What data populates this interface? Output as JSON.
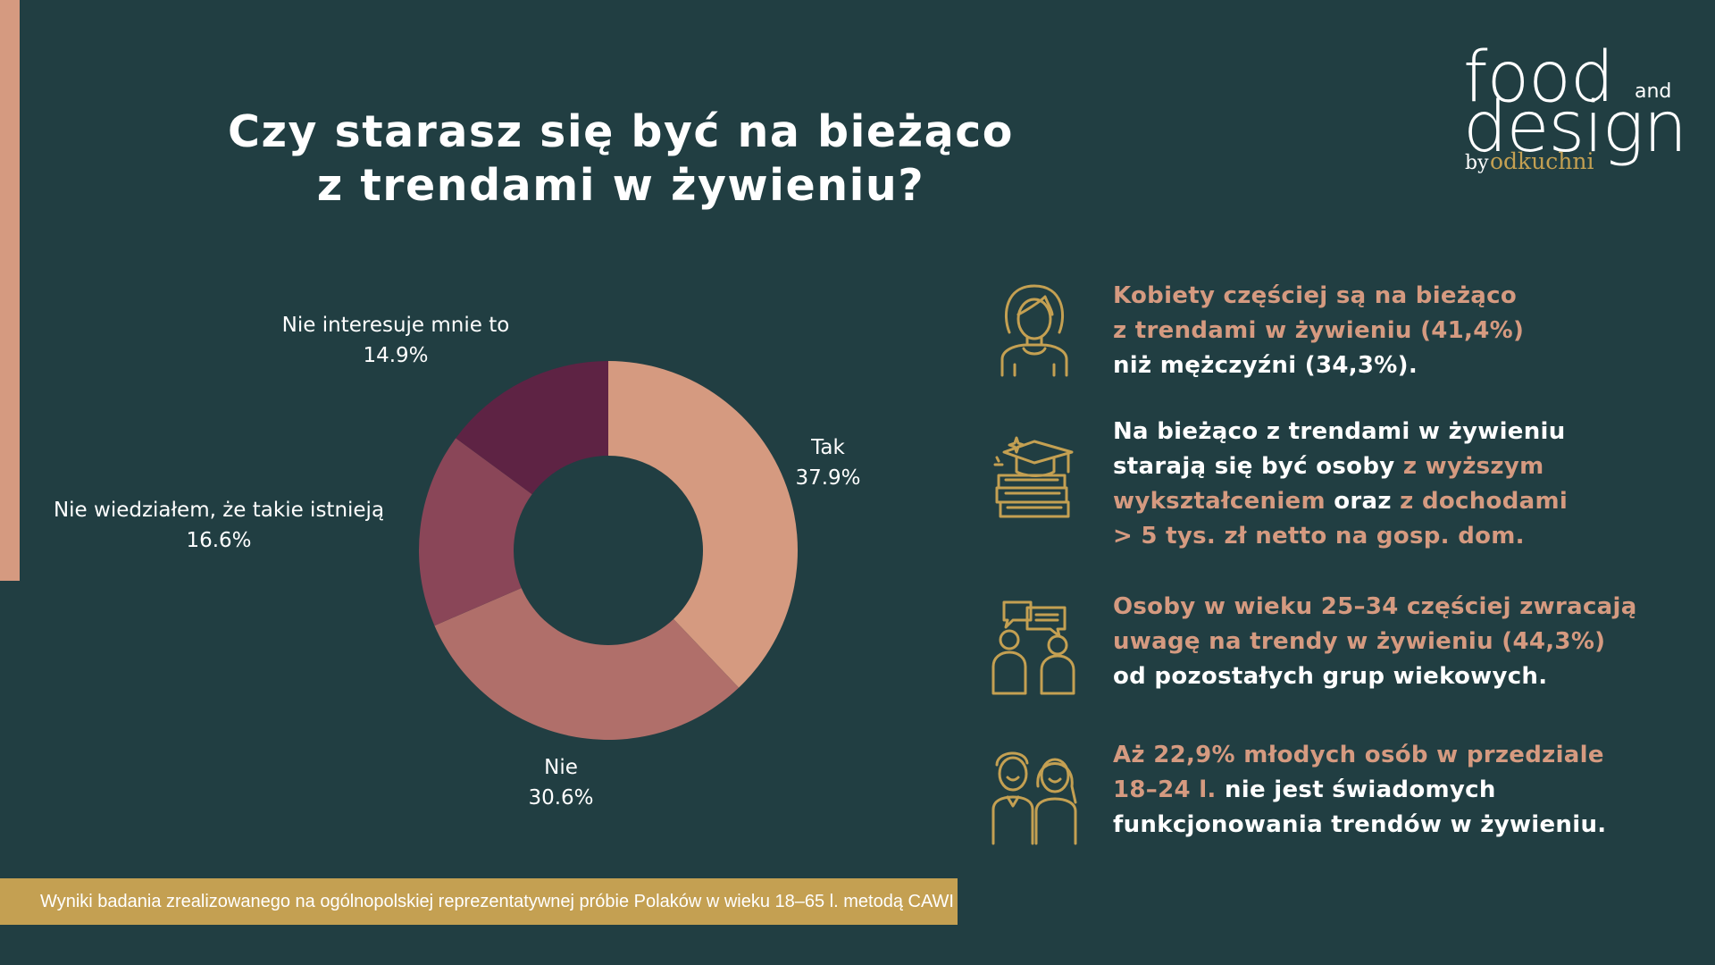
{
  "title": {
    "line1": "Czy starasz się być na bieżąco",
    "line2": "z trendami w żywieniu?"
  },
  "logo": {
    "word1": "food",
    "word2": "design",
    "and": "and",
    "by": "by",
    "brand": "odkuchni"
  },
  "colors": {
    "background": "#213e42",
    "accent": "#d59a80",
    "gold": "#c4a052"
  },
  "chart_data": {
    "type": "pie",
    "variant": "donut",
    "title": "Czy starasz się być na bieżąco z trendami w żywieniu?",
    "slices": [
      {
        "label": "Tak",
        "value": 37.9,
        "display": "37.9%",
        "color": "#d59a80"
      },
      {
        "label": "Nie",
        "value": 30.6,
        "display": "30.6%",
        "color": "#b06f6a"
      },
      {
        "label": "Nie wiedziałem, że takie istnieją",
        "value": 16.6,
        "display": "16.6%",
        "color": "#8a4658"
      },
      {
        "label": "Nie interesuje mnie to",
        "value": 14.9,
        "display": "14.9%",
        "color": "#5e2344"
      }
    ],
    "legend": "none",
    "labels": "outside"
  },
  "facts": [
    {
      "icon": "woman-icon",
      "lines": [
        [
          {
            "text": "Kobiety częściej są na bieżąco",
            "style": "pink"
          }
        ],
        [
          {
            "text": "z trendami w żywieniu (41,4%)",
            "style": "pink"
          }
        ],
        [
          {
            "text": "niż mężczyźni (34,3%).",
            "style": "white"
          }
        ]
      ]
    },
    {
      "icon": "education-books-icon",
      "lines": [
        [
          {
            "text": "Na bieżąco z trendami w żywieniu",
            "style": "white"
          }
        ],
        [
          {
            "text": "starają się być osoby ",
            "style": "white"
          },
          {
            "text": "z wyższym",
            "style": "pink"
          }
        ],
        [
          {
            "text": "wykształceniem",
            "style": "pink"
          },
          {
            "text": " oraz ",
            "style": "white"
          },
          {
            "text": "z dochodami",
            "style": "pink"
          }
        ],
        [
          {
            "text": "> 5 tys. zł netto na gosp. dom.",
            "style": "pink"
          }
        ]
      ]
    },
    {
      "icon": "people-chat-icon",
      "lines": [
        [
          {
            "text": "Osoby w wieku 25–34 częściej zwracają",
            "style": "pink"
          }
        ],
        [
          {
            "text": "uwagę na trendy w żywieniu (44,3%)",
            "style": "pink"
          }
        ],
        [
          {
            "text": "od pozostałych grup wiekowych.",
            "style": "white"
          }
        ]
      ]
    },
    {
      "icon": "young-couple-icon",
      "lines": [
        [
          {
            "text": "Aż 22,9% młodych osób w przedziale",
            "style": "pink"
          }
        ],
        [
          {
            "text": "18–24 l.",
            "style": "pink"
          },
          {
            "text": " nie jest świadomych",
            "style": "white"
          }
        ],
        [
          {
            "text": "funkcjonowania trendów w żywieniu.",
            "style": "white"
          }
        ]
      ]
    }
  ],
  "footer": {
    "text": "Wyniki badania zrealizowanego na ogólnopolskiej reprezentatywnej próbie Polaków w wieku 18–65 l. metodą CAWI"
  }
}
